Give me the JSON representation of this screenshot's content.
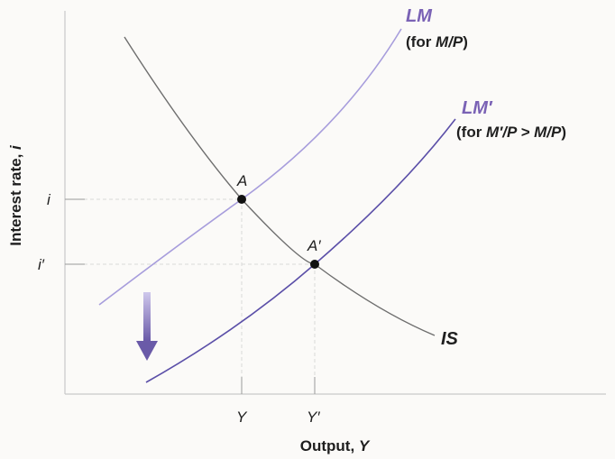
{
  "axes": {
    "x_label_text": "Output, ",
    "x_label_var": "Y",
    "y_label_text": "Interest rate, ",
    "y_label_var": "i"
  },
  "ticks": {
    "x": [
      "Y",
      "Y′"
    ],
    "y": [
      "i",
      "i′"
    ]
  },
  "curves": {
    "lm": {
      "name": "LM",
      "note_open": "(for ",
      "note_var": "M/P",
      "note_close": ")",
      "color": "#9b8fd6"
    },
    "lm_prime": {
      "name": "LM′",
      "note_open": "(for ",
      "note_var": "M′/P > M/P",
      "note_close": ")",
      "color": "#5b4fa8"
    },
    "is": {
      "name": "IS",
      "color": "#6e6e6e"
    }
  },
  "points": [
    {
      "label": "A"
    },
    {
      "label": "A′"
    }
  ],
  "colors": {
    "label_purple": "#7a62b5",
    "axis": "#c9c9c9",
    "guide": "#d9d9d9",
    "arrow": "#7a6bb8",
    "text": "#1f1f1f"
  },
  "icons": {
    "shift_arrow": "down-arrow-icon"
  }
}
